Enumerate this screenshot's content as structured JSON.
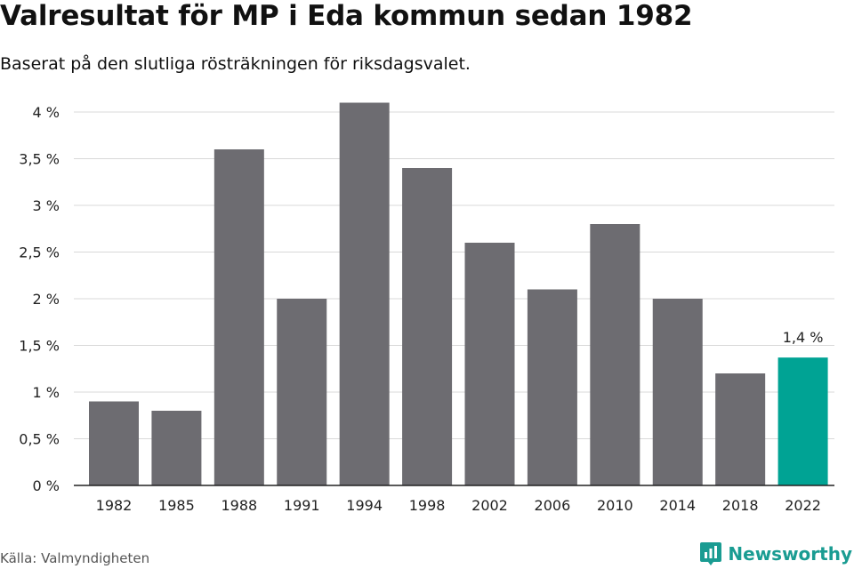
{
  "title": "Valresultat för MP i Eda kommun sedan 1982",
  "subtitle": "Baserat på den slutliga rösträkningen för riksdagsvalet.",
  "source": "Källa: Valmyndigheten",
  "brand": {
    "name": "Newsworthy",
    "icon": "newsworthy-logo-icon",
    "color": "#1a9c92"
  },
  "colors": {
    "bar": "#6d6c71",
    "highlight": "#00a394",
    "grid": "#d9d9d9",
    "axis": "#222222"
  },
  "chart_data": {
    "type": "bar",
    "title": "Valresultat för MP i Eda kommun sedan 1982",
    "subtitle": "Baserat på den slutliga rösträkningen för riksdagsvalet.",
    "categories": [
      "1982",
      "1985",
      "1988",
      "1991",
      "1994",
      "1998",
      "2002",
      "2006",
      "2010",
      "2014",
      "2018",
      "2022"
    ],
    "values": [
      0.9,
      0.8,
      3.6,
      2.0,
      4.1,
      3.4,
      2.6,
      2.1,
      2.8,
      2.0,
      1.2,
      1.37
    ],
    "unit": "%",
    "ylim": [
      0,
      4
    ],
    "yticks": [
      0,
      0.5,
      1,
      1.5,
      2,
      2.5,
      3,
      3.5,
      4
    ],
    "ytick_labels": [
      "0 %",
      "0,5 %",
      "1 %",
      "1,5 %",
      "2 %",
      "2,5 %",
      "3 %",
      "3,5 %",
      "4 %"
    ],
    "highlight_index": 11,
    "data_labels": [
      {
        "index": 11,
        "text": "1,4 %"
      }
    ],
    "grid": true,
    "legend": "none"
  }
}
